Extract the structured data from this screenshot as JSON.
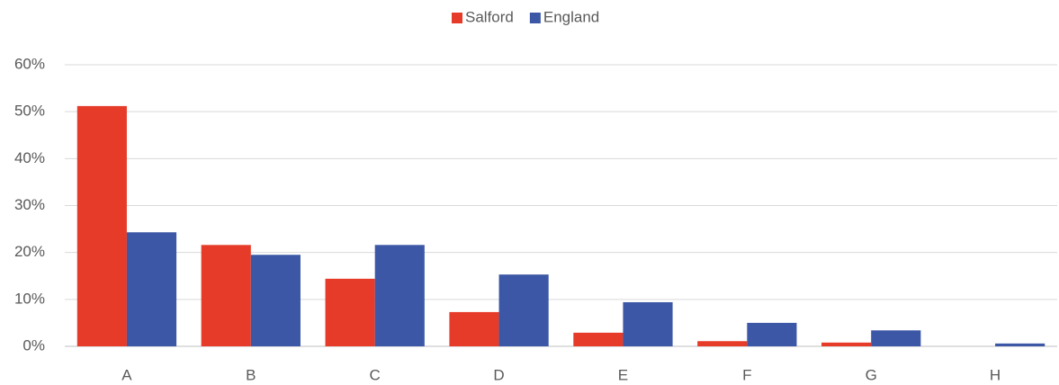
{
  "chart_data": {
    "type": "bar",
    "categories": [
      "A",
      "B",
      "C",
      "D",
      "E",
      "F",
      "G",
      "H"
    ],
    "series": [
      {
        "name": "Salford",
        "color": "#e63b28",
        "values": [
          51.2,
          21.6,
          14.4,
          7.3,
          2.9,
          1.1,
          0.8,
          0
        ]
      },
      {
        "name": "England",
        "color": "#3c57a5",
        "values": [
          24.3,
          19.5,
          21.6,
          15.3,
          9.4,
          5.0,
          3.4,
          0.6
        ]
      }
    ],
    "ylim": [
      0,
      60
    ],
    "yticks": [
      {
        "value": 0,
        "label": "0%"
      },
      {
        "value": 10,
        "label": "10%"
      },
      {
        "value": 20,
        "label": "20%"
      },
      {
        "value": 30,
        "label": "30%"
      },
      {
        "value": 40,
        "label": "40%"
      },
      {
        "value": 50,
        "label": "50%"
      },
      {
        "value": 60,
        "label": "60%"
      }
    ],
    "grid": true,
    "legend": "top"
  }
}
